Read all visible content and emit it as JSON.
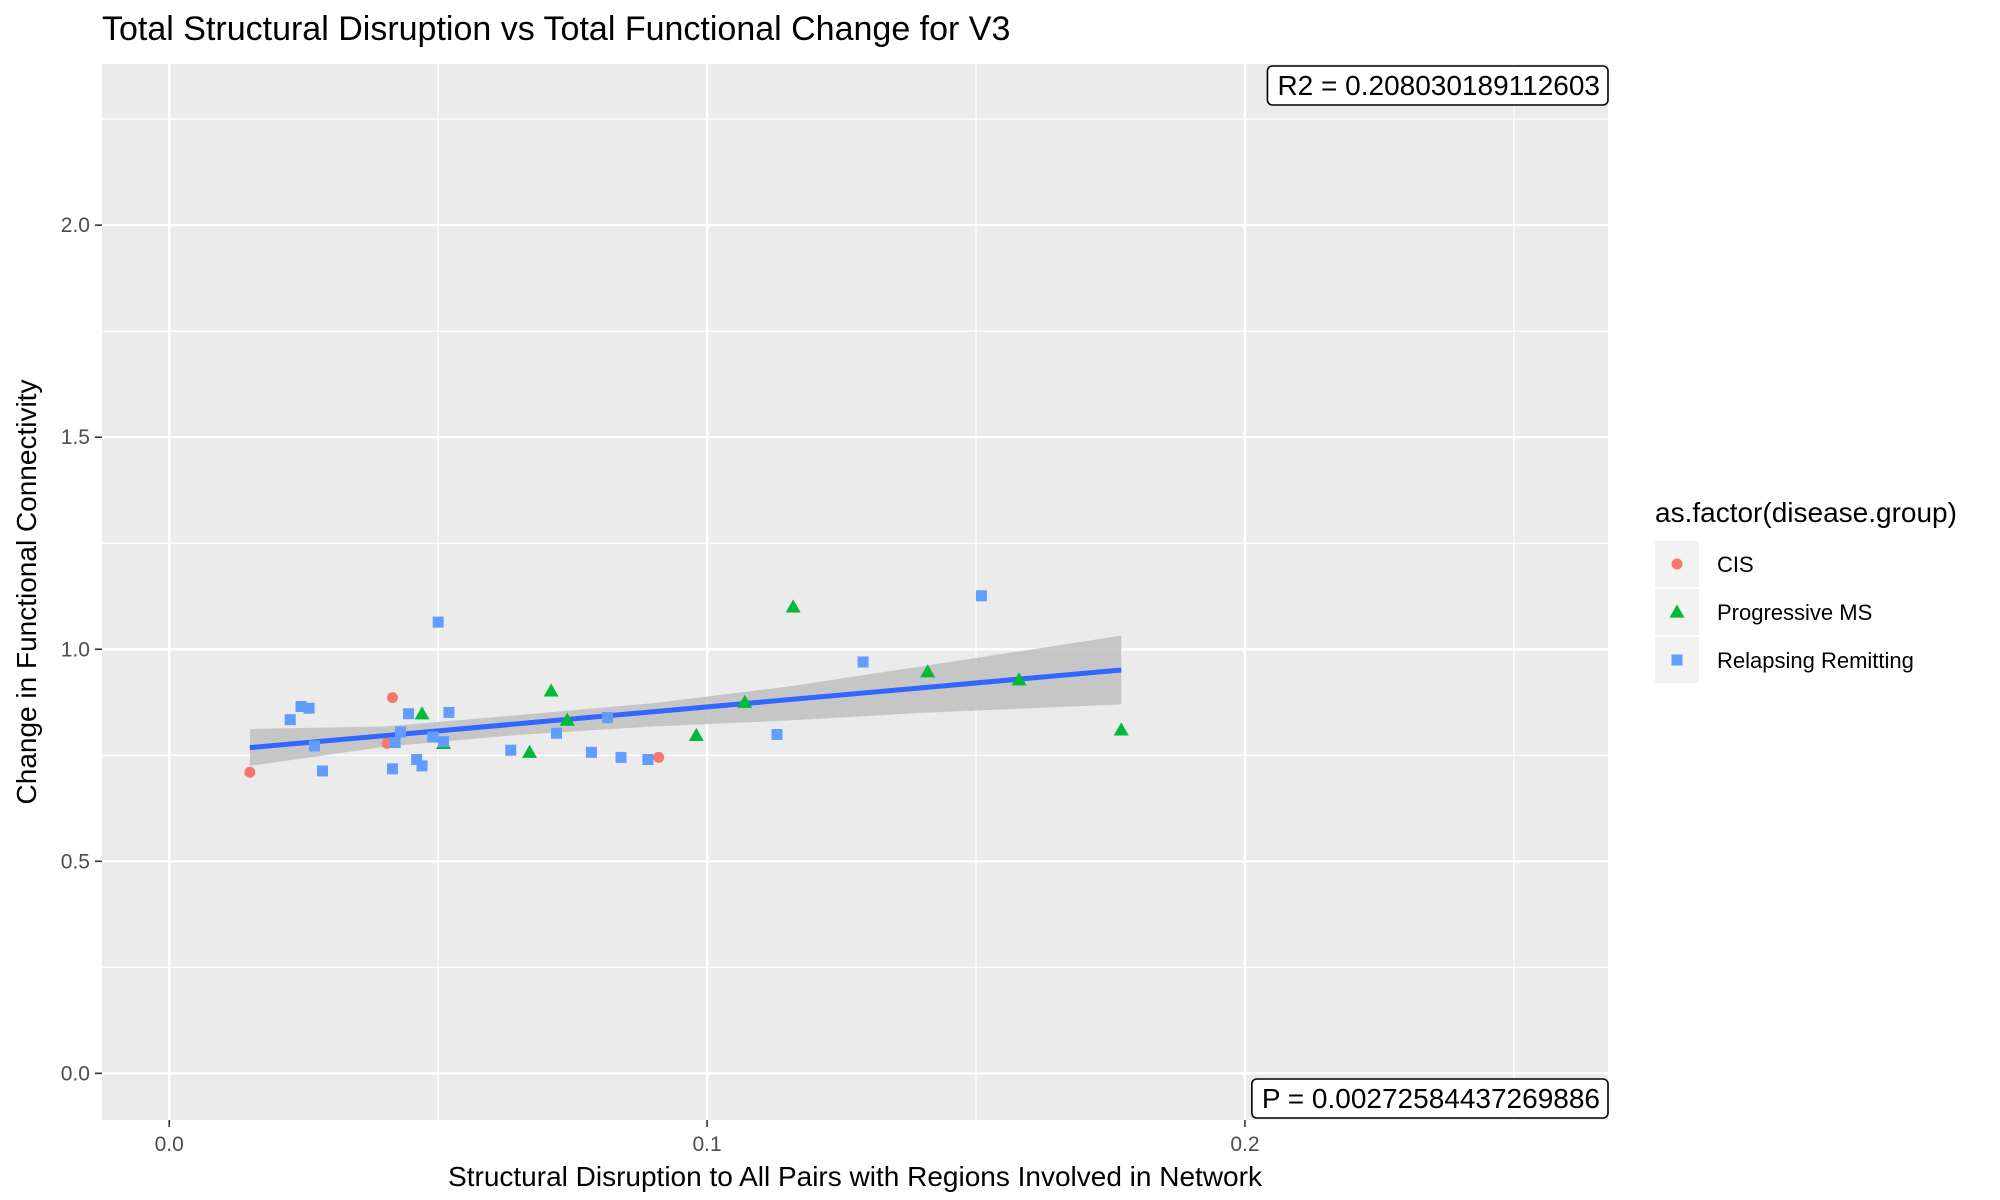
{
  "chart_data": {
    "type": "scatter",
    "title": "Total Structural Disruption vs Total Functional Change for V3",
    "xlabel": "Structural Disruption to All Pairs with Regions Involved in Network",
    "ylabel": "Change in Functional Connectivity",
    "xlim": [
      -0.0125,
      0.2675
    ],
    "ylim": [
      -0.11,
      2.38
    ],
    "x_ticks": [
      0.0,
      0.1,
      0.2
    ],
    "x_tick_labels": [
      "0.0",
      "0.1",
      "0.2"
    ],
    "y_ticks": [
      0.0,
      0.5,
      1.0,
      1.5,
      2.0
    ],
    "y_tick_labels": [
      "0.0",
      "0.5",
      "1.0",
      "1.5",
      "2.0"
    ],
    "grid": true,
    "legend": {
      "title": "as.factor(disease.group)",
      "position": "right"
    },
    "colors": {
      "CIS": "#F8766D",
      "Progressive MS": "#00BA38",
      "Relapsing Remitting": "#619CFF",
      "fit": "#3366FF",
      "ribbon": "#bfbfbf",
      "panel": "#ebebeb"
    },
    "series": [
      {
        "name": "CIS",
        "marker": "circle",
        "points": [
          [
            0.015,
            0.71
          ],
          [
            0.0405,
            0.778
          ],
          [
            0.0415,
            0.886
          ],
          [
            0.091,
            0.745
          ]
        ]
      },
      {
        "name": "Progressive MS",
        "marker": "triangle",
        "points": [
          [
            0.047,
            0.848
          ],
          [
            0.051,
            0.778
          ],
          [
            0.067,
            0.757
          ],
          [
            0.071,
            0.902
          ],
          [
            0.074,
            0.833
          ],
          [
            0.098,
            0.797
          ],
          [
            0.107,
            0.875
          ],
          [
            0.116,
            1.1
          ],
          [
            0.141,
            0.947
          ],
          [
            0.158,
            0.928
          ],
          [
            0.177,
            0.81
          ]
        ]
      },
      {
        "name": "Relapsing Remitting",
        "marker": "square",
        "points": [
          [
            0.0225,
            0.834
          ],
          [
            0.0245,
            0.865
          ],
          [
            0.026,
            0.861
          ],
          [
            0.027,
            0.772
          ],
          [
            0.0285,
            0.713
          ],
          [
            0.0415,
            0.718
          ],
          [
            0.042,
            0.78
          ],
          [
            0.043,
            0.805
          ],
          [
            0.0445,
            0.848
          ],
          [
            0.046,
            0.74
          ],
          [
            0.047,
            0.725
          ],
          [
            0.049,
            0.793
          ],
          [
            0.05,
            1.064
          ],
          [
            0.051,
            0.782
          ],
          [
            0.052,
            0.851
          ],
          [
            0.0635,
            0.762
          ],
          [
            0.072,
            0.802
          ],
          [
            0.0785,
            0.757
          ],
          [
            0.0815,
            0.839
          ],
          [
            0.084,
            0.745
          ],
          [
            0.089,
            0.74
          ],
          [
            0.113,
            0.799
          ],
          [
            0.129,
            0.97
          ],
          [
            0.151,
            1.126
          ]
        ]
      }
    ],
    "fit_line": {
      "method": "lm",
      "x": [
        0.015,
        0.177
      ],
      "y": [
        0.768,
        0.951
      ],
      "ci_band": [
        {
          "x": 0.015,
          "lower": 0.725,
          "upper": 0.812
        },
        {
          "x": 0.04,
          "lower": 0.77,
          "upper": 0.818
        },
        {
          "x": 0.065,
          "lower": 0.798,
          "upper": 0.845
        },
        {
          "x": 0.09,
          "lower": 0.818,
          "upper": 0.873
        },
        {
          "x": 0.115,
          "lower": 0.832,
          "upper": 0.912
        },
        {
          "x": 0.14,
          "lower": 0.85,
          "upper": 0.96
        },
        {
          "x": 0.177,
          "lower": 0.87,
          "upper": 1.032
        }
      ]
    },
    "annotations": {
      "r2_label": "R2 =  0.208030189112603",
      "p_label": "P =  0.00272584437269886"
    }
  }
}
